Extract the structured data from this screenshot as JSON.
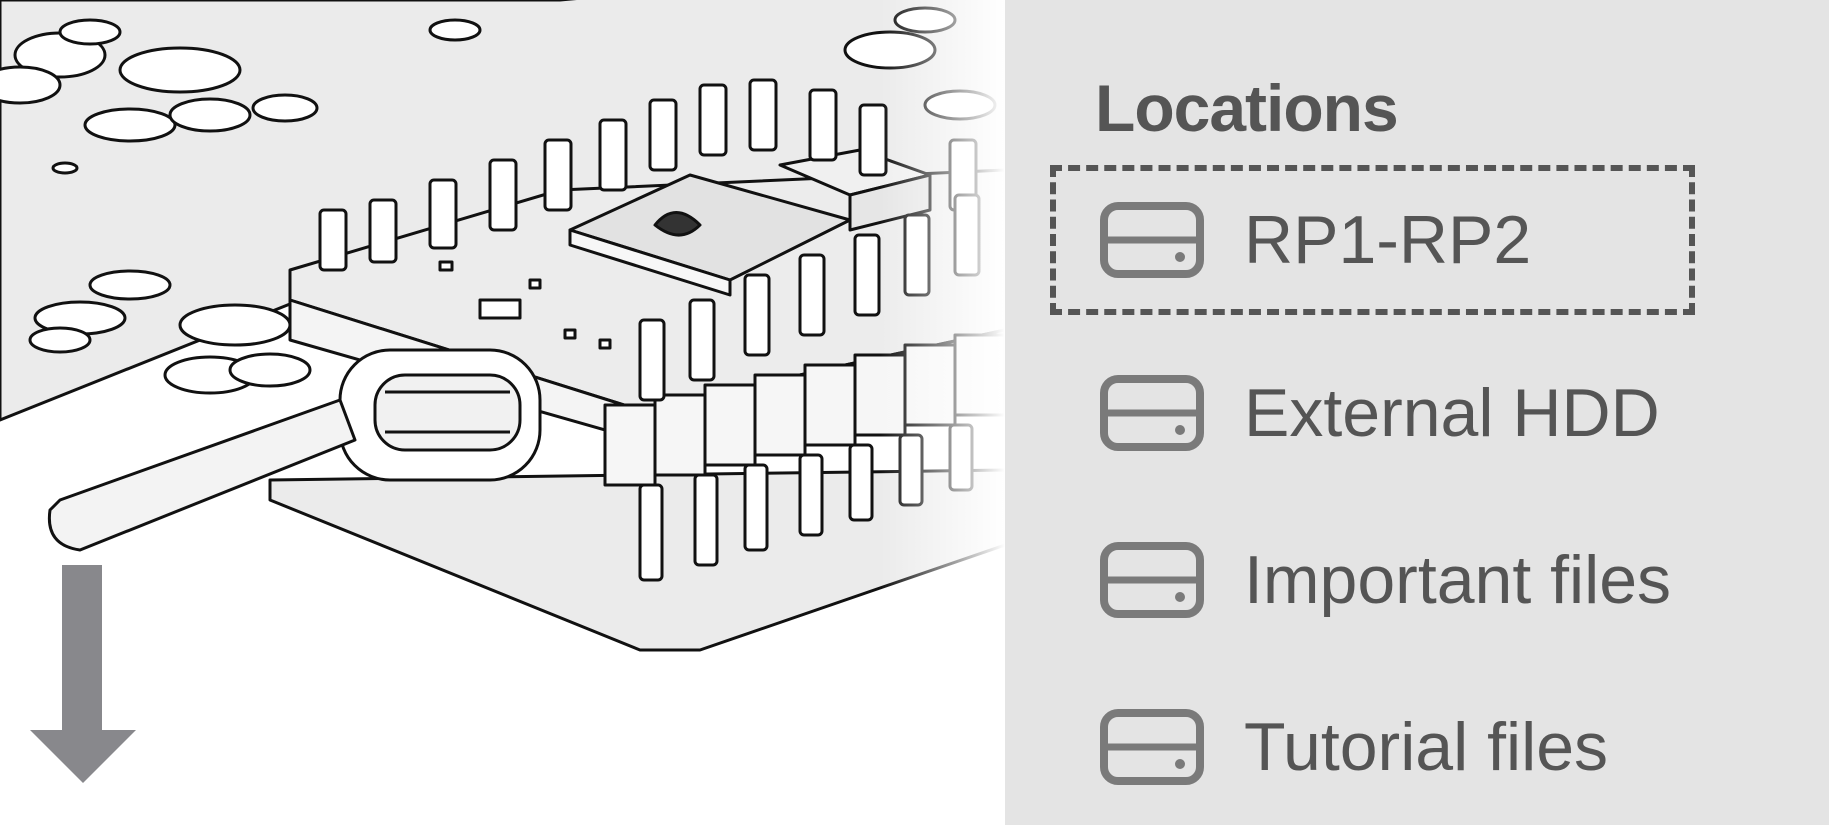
{
  "locations_panel": {
    "heading": "Locations",
    "items": [
      {
        "label": "RP1-RP2",
        "icon": "drive-icon",
        "selected": true
      },
      {
        "label": "External HDD",
        "icon": "drive-icon",
        "selected": false
      },
      {
        "label": "Important files",
        "icon": "drive-icon",
        "selected": false
      },
      {
        "label": "Tutorial files",
        "icon": "drive-icon",
        "selected": false
      }
    ]
  },
  "colors": {
    "panel_background": "#e4e4e4",
    "text": "#555555",
    "icon": "#7a7a7a",
    "arrow": "#88888c",
    "line_art": "#111111"
  },
  "illustration": {
    "subject": "pi-board-usb-c-illustration",
    "arrow_direction": "down"
  }
}
